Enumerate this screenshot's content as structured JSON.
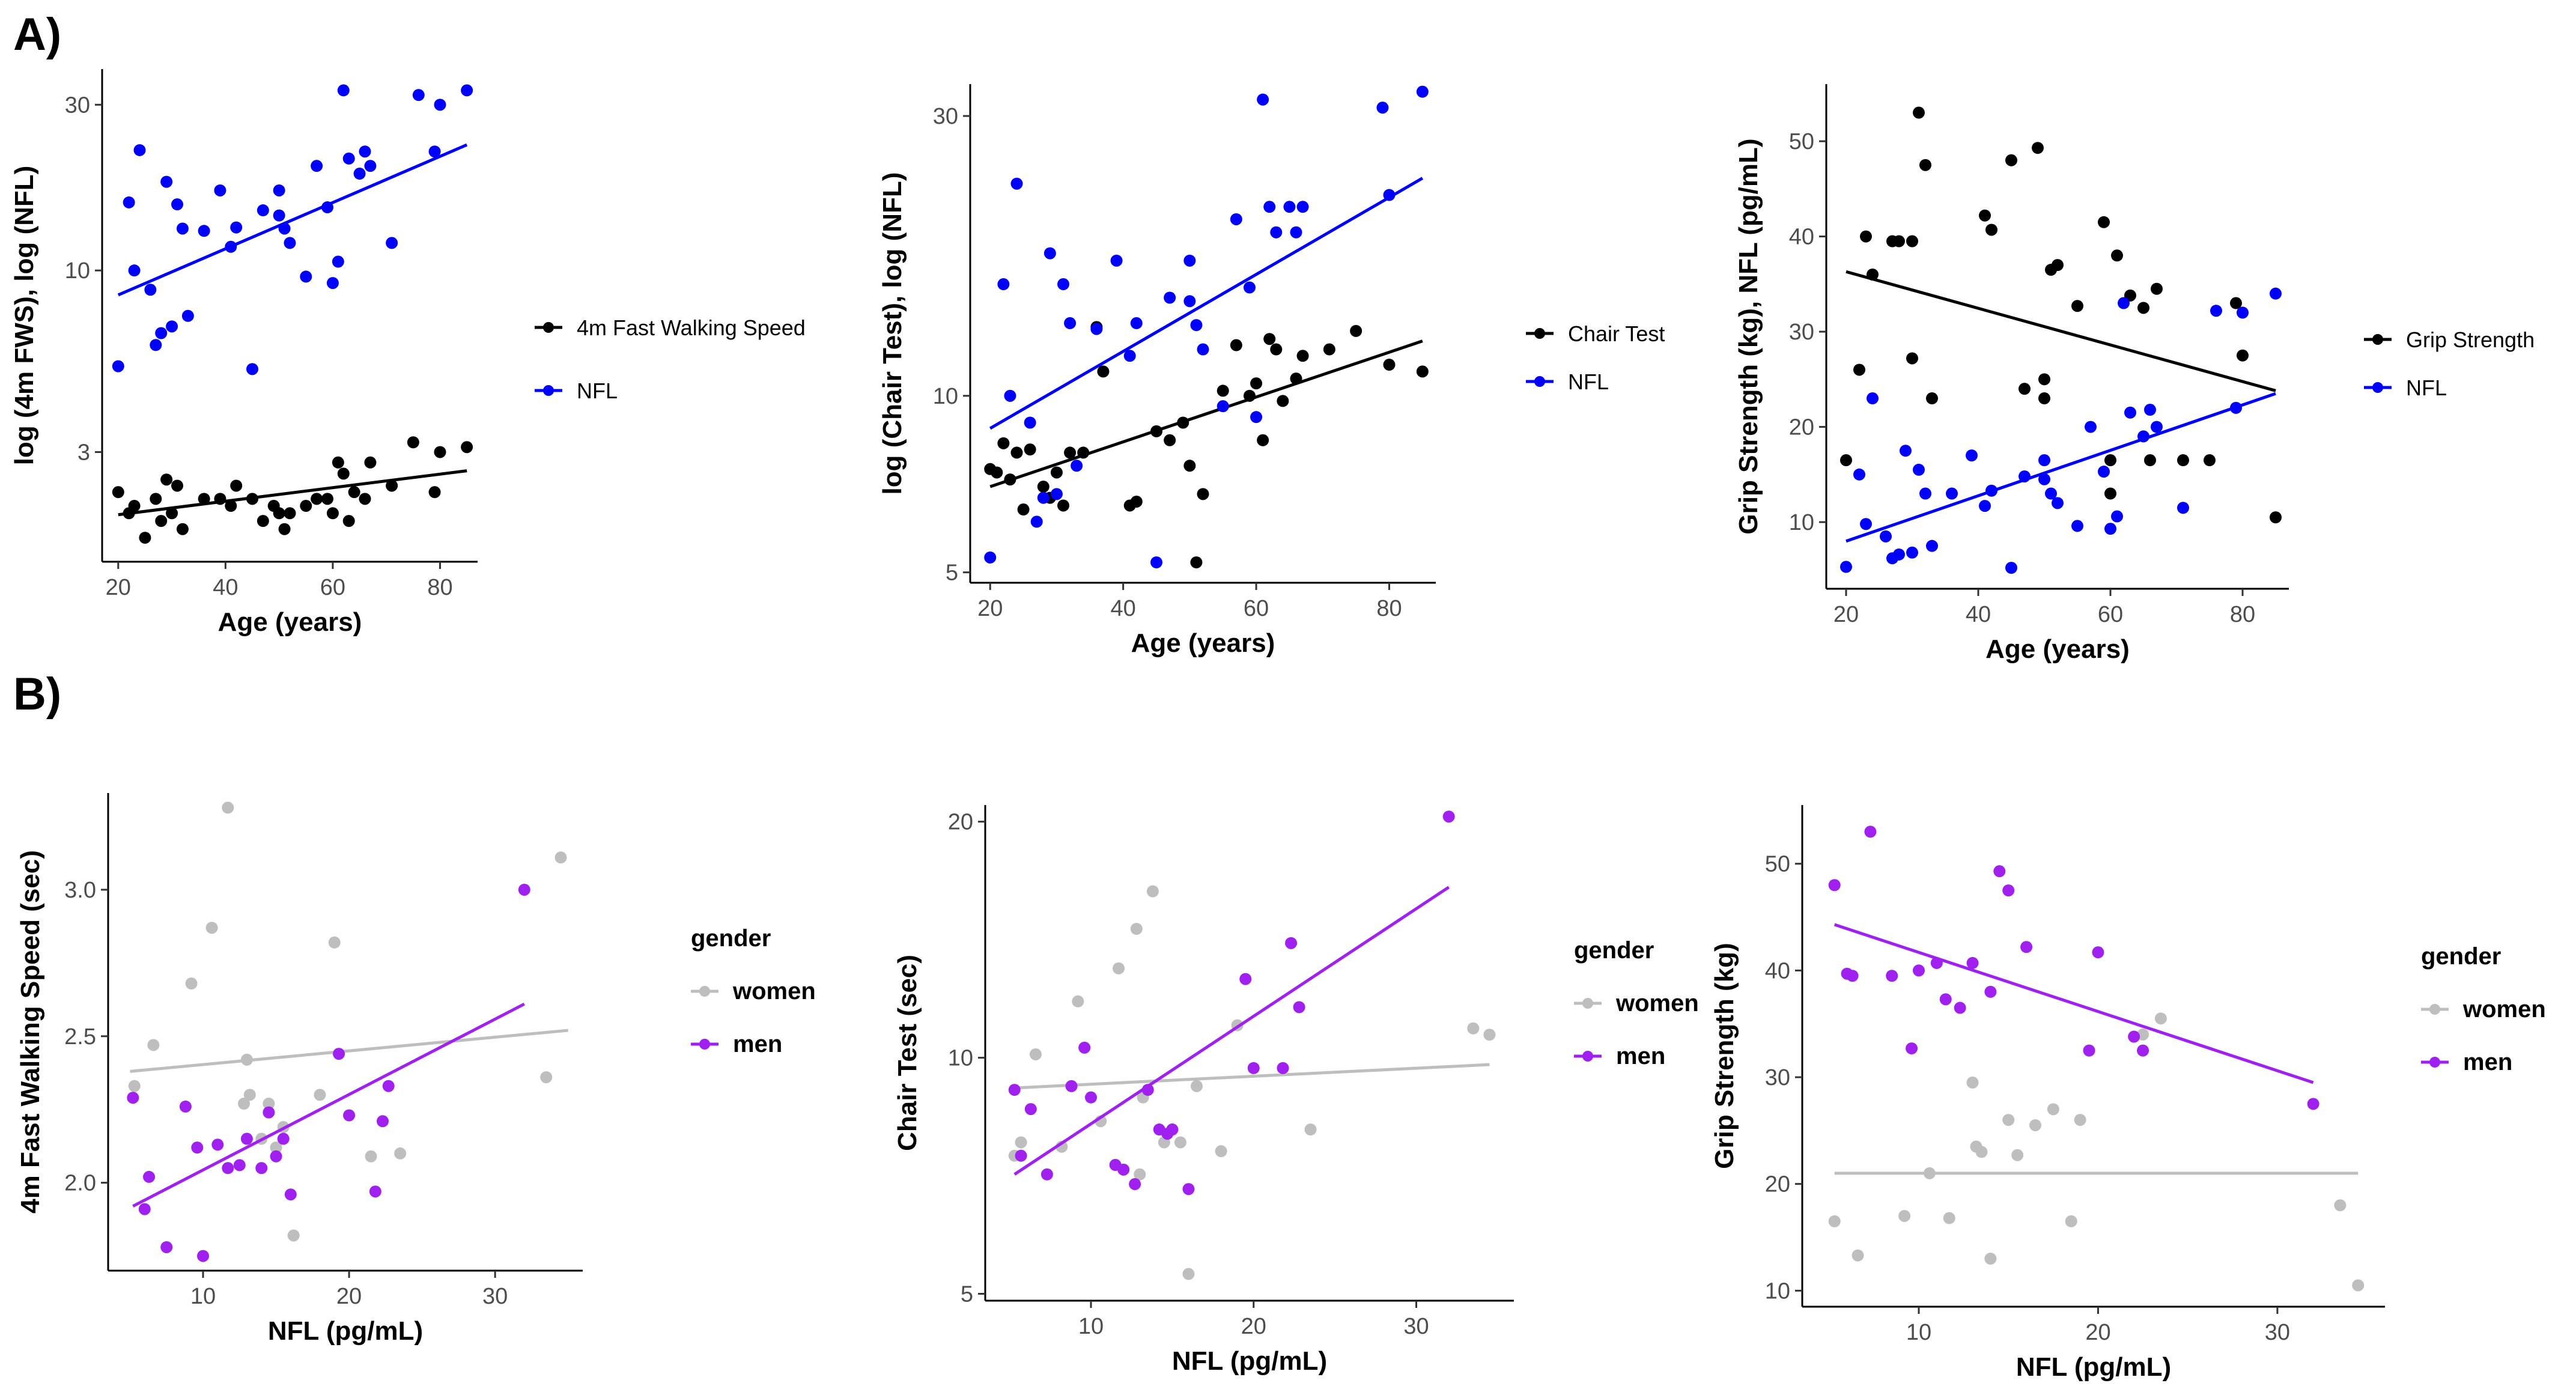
{
  "panels": {
    "a": "A)",
    "b": "B)"
  },
  "chart_data": [
    {
      "id": "a1",
      "type": "scatter",
      "yscale": "log",
      "xlabel": "Age (years)",
      "ylabel": "log (4m FWS), log (NFL)",
      "xlim": [
        17,
        87
      ],
      "ylim": [
        1.45,
        38
      ],
      "xticks": [
        20,
        40,
        60,
        80
      ],
      "yticks": [
        3,
        10,
        30
      ],
      "legend": {
        "position": "right",
        "title": ""
      },
      "series": [
        {
          "name": "4m Fast Walking Speed",
          "color": "#000000",
          "x": [
            20,
            22,
            23,
            25,
            27,
            28,
            29,
            30,
            31,
            32,
            36,
            39,
            41,
            42,
            45,
            47,
            49,
            50,
            51,
            52,
            55,
            57,
            59,
            60,
            61,
            62,
            63,
            64,
            66,
            67,
            71,
            75,
            79,
            80,
            85
          ],
          "y": [
            2.3,
            2.0,
            2.1,
            1.7,
            2.2,
            1.9,
            2.5,
            2.0,
            2.4,
            1.8,
            2.2,
            2.2,
            2.1,
            2.4,
            2.2,
            1.9,
            2.1,
            2.0,
            1.8,
            2.0,
            2.1,
            2.2,
            2.2,
            2.0,
            2.8,
            2.6,
            1.9,
            2.3,
            2.2,
            2.8,
            2.4,
            3.2,
            2.3,
            3.0,
            3.1
          ],
          "fit": [
            [
              20,
              1.98
            ],
            [
              85,
              2.65
            ]
          ]
        },
        {
          "name": "NFL",
          "color": "#0000FF",
          "x": [
            20,
            22,
            23,
            24,
            26,
            27,
            28,
            29,
            30,
            31,
            32,
            33,
            36,
            39,
            41,
            42,
            45,
            47,
            50,
            50,
            51,
            52,
            55,
            57,
            59,
            60,
            61,
            62,
            63,
            65,
            66,
            67,
            71,
            76,
            79,
            80,
            85
          ],
          "y": [
            5.3,
            15.7,
            10.0,
            22.2,
            8.8,
            6.1,
            6.6,
            18.0,
            6.9,
            15.5,
            13.2,
            7.4,
            13.0,
            17.0,
            11.7,
            13.3,
            5.2,
            14.9,
            17.0,
            14.4,
            13.2,
            12.0,
            9.6,
            20.0,
            15.2,
            9.2,
            10.6,
            33.0,
            21.0,
            19.0,
            22.0,
            20.0,
            12.0,
            32.0,
            22.0,
            30.0,
            33.0
          ],
          "fit": [
            [
              20,
              8.5
            ],
            [
              85,
              23.0
            ]
          ]
        }
      ]
    },
    {
      "id": "a2",
      "type": "scatter",
      "yscale": "log",
      "xlabel": "Age (years)",
      "ylabel": "log (Chair Test), log (NFL)",
      "xlim": [
        17,
        87
      ],
      "ylim": [
        4.8,
        34
      ],
      "xticks": [
        20,
        40,
        60,
        80
      ],
      "yticks": [
        5,
        10,
        30
      ],
      "legend": {
        "position": "right",
        "title": ""
      },
      "series": [
        {
          "name": "Chair Test",
          "color": "#000000",
          "x": [
            20,
            21,
            22,
            23,
            24,
            25,
            26,
            28,
            29,
            30,
            31,
            32,
            34,
            36,
            37,
            41,
            42,
            45,
            47,
            49,
            50,
            51,
            52,
            55,
            57,
            59,
            60,
            61,
            62,
            63,
            64,
            66,
            67,
            71,
            75,
            80,
            85
          ],
          "y": [
            7.5,
            7.4,
            8.3,
            7.2,
            8.0,
            6.4,
            8.1,
            7.0,
            6.7,
            7.4,
            6.5,
            8.0,
            8.0,
            13.1,
            11.0,
            6.5,
            6.6,
            8.7,
            8.4,
            9.0,
            7.6,
            5.2,
            6.8,
            10.2,
            12.2,
            10.0,
            10.5,
            8.4,
            12.5,
            12.0,
            9.8,
            10.7,
            11.7,
            12.0,
            12.9,
            11.3,
            11.0
          ],
          "fit": [
            [
              20,
              7.0
            ],
            [
              85,
              12.4
            ]
          ]
        },
        {
          "name": "NFL",
          "color": "#0000FF",
          "x": [
            20,
            22,
            23,
            24,
            26,
            27,
            28,
            29,
            30,
            31,
            32,
            33,
            36,
            39,
            41,
            42,
            45,
            47,
            50,
            50,
            51,
            52,
            55,
            57,
            59,
            60,
            61,
            62,
            63,
            65,
            66,
            67,
            79,
            80,
            85
          ],
          "y": [
            5.3,
            15.5,
            10.0,
            23.0,
            9.0,
            6.1,
            6.7,
            17.5,
            6.8,
            15.5,
            13.3,
            7.6,
            13.0,
            17.0,
            11.7,
            13.3,
            5.2,
            14.7,
            17.0,
            14.5,
            13.2,
            12.0,
            9.6,
            20.0,
            15.3,
            9.2,
            32.0,
            21.0,
            19.0,
            21.0,
            19.0,
            21.0,
            31.0,
            22.0,
            33.0
          ],
          "fit": [
            [
              20,
              8.8
            ],
            [
              85,
              23.5
            ]
          ]
        }
      ]
    },
    {
      "id": "a3",
      "type": "scatter",
      "yscale": "linear",
      "xlabel": "Age (years)",
      "ylabel": "Grip Strength (kg), NFL (pg/mL)",
      "xlim": [
        17,
        87
      ],
      "ylim": [
        3,
        56
      ],
      "xticks": [
        20,
        40,
        60,
        80
      ],
      "yticks": [
        10,
        20,
        30,
        40,
        50
      ],
      "legend": {
        "position": "right",
        "title": ""
      },
      "series": [
        {
          "name": "Grip Strength",
          "color": "#000000",
          "x": [
            20,
            22,
            23,
            24,
            27,
            28,
            30,
            30,
            31,
            32,
            33,
            41,
            42,
            45,
            47,
            49,
            50,
            50,
            51,
            52,
            55,
            59,
            60,
            60,
            61,
            63,
            65,
            66,
            67,
            71,
            75,
            79,
            80,
            85
          ],
          "y": [
            16.5,
            26,
            40,
            36,
            39.5,
            39.5,
            39.5,
            27.2,
            53,
            47.5,
            23,
            42.2,
            40.7,
            48,
            24,
            49.3,
            25,
            23,
            36.5,
            37,
            32.7,
            41.5,
            13,
            16.5,
            38,
            33.8,
            32.5,
            16.5,
            34.5,
            16.5,
            16.5,
            33,
            27.5,
            10.5
          ],
          "fit": [
            [
              20,
              36.3
            ],
            [
              85,
              23.8
            ]
          ]
        },
        {
          "name": "NFL",
          "color": "#0000FF",
          "x": [
            20,
            22,
            23,
            24,
            26,
            27,
            28,
            29,
            30,
            31,
            32,
            33,
            36,
            39,
            41,
            42,
            45,
            47,
            50,
            50,
            51,
            52,
            55,
            57,
            59,
            60,
            61,
            62,
            63,
            65,
            66,
            67,
            71,
            76,
            79,
            80,
            85
          ],
          "y": [
            5.3,
            15,
            9.8,
            23,
            8.5,
            6.2,
            6.6,
            17.5,
            6.8,
            15.5,
            13,
            7.5,
            13,
            17,
            11.7,
            13.3,
            5.2,
            14.8,
            16.5,
            14.5,
            13,
            12,
            9.6,
            20,
            15.3,
            9.3,
            10.6,
            33,
            21.5,
            19,
            21.8,
            20,
            11.5,
            32.2,
            22,
            32,
            34
          ],
          "fit": [
            [
              20,
              8.0
            ],
            [
              85,
              23.5
            ]
          ]
        }
      ]
    },
    {
      "id": "b1",
      "type": "scatter",
      "yscale": "linear",
      "xlabel": "NFL (pg/mL)",
      "ylabel": "4m Fast Walking Speed (sec)",
      "xlim": [
        3.5,
        36
      ],
      "ylim": [
        1.7,
        3.33
      ],
      "xticks": [
        10,
        20,
        30
      ],
      "yticks": [
        "2.0",
        "2.5",
        "3.0"
      ],
      "legend": {
        "position": "right",
        "title": "gender"
      },
      "series": [
        {
          "name": "women",
          "color": "#BEBEBE",
          "x": [
            5.3,
            6.6,
            9.2,
            10.6,
            11.7,
            12.8,
            13.0,
            13.2,
            14.0,
            14.5,
            15.0,
            15.5,
            16.2,
            18.0,
            19.0,
            21.5,
            23.5,
            33.5,
            34.5
          ],
          "y": [
            2.33,
            2.47,
            2.68,
            2.87,
            3.28,
            2.27,
            2.42,
            2.3,
            2.15,
            2.27,
            2.12,
            2.19,
            1.82,
            2.3,
            2.82,
            2.09,
            2.1,
            2.36,
            3.11
          ],
          "fit": [
            [
              5,
              2.38
            ],
            [
              35,
              2.52
            ]
          ]
        },
        {
          "name": "men",
          "color": "#A020F0",
          "x": [
            5.2,
            6.0,
            6.3,
            7.5,
            8.8,
            9.6,
            10.0,
            11.0,
            11.7,
            12.5,
            13.0,
            14.0,
            14.5,
            15.0,
            15.5,
            16.0,
            19.3,
            20.0,
            21.8,
            22.3,
            22.7,
            32.0
          ],
          "y": [
            2.29,
            1.91,
            2.02,
            1.78,
            2.26,
            2.12,
            1.75,
            2.13,
            2.05,
            2.06,
            2.15,
            2.05,
            2.24,
            2.09,
            2.15,
            1.96,
            2.44,
            2.23,
            1.97,
            2.21,
            2.33,
            3.0
          ],
          "fit": [
            [
              5.2,
              1.92
            ],
            [
              32,
              2.61
            ]
          ]
        }
      ]
    },
    {
      "id": "b2",
      "type": "scatter",
      "yscale": "log",
      "xlabel": "NFL (pg/mL)",
      "ylabel": "Chair Test (sec)",
      "xlim": [
        3.5,
        36
      ],
      "ylim": [
        4.9,
        21
      ],
      "xticks": [
        10,
        20,
        30
      ],
      "yticks": [
        5,
        10,
        20
      ],
      "legend": {
        "position": "right",
        "title": "gender"
      },
      "series": [
        {
          "name": "women",
          "color": "#BEBEBE",
          "x": [
            5.3,
            5.7,
            6.6,
            8.2,
            9.2,
            10.6,
            11.7,
            12.8,
            13.0,
            13.2,
            13.8,
            14.5,
            15.0,
            15.5,
            16.0,
            16.5,
            18.0,
            19.0,
            23.5,
            33.5,
            34.5
          ],
          "y": [
            7.5,
            7.8,
            10.1,
            7.7,
            11.8,
            8.3,
            13.0,
            14.6,
            7.1,
            8.9,
            16.3,
            7.8,
            8.1,
            7.8,
            5.3,
            9.2,
            7.6,
            11.0,
            8.1,
            10.9,
            10.7
          ],
          "fit": [
            [
              5.3,
              9.15
            ],
            [
              34.5,
              9.8
            ]
          ]
        },
        {
          "name": "men",
          "color": "#A020F0",
          "x": [
            5.3,
            5.7,
            6.3,
            7.3,
            8.8,
            9.6,
            10.0,
            11.5,
            12.0,
            12.7,
            13.5,
            14.2,
            14.7,
            15.0,
            16.0,
            19.5,
            20.0,
            21.8,
            22.3,
            22.8,
            32.0
          ],
          "y": [
            9.1,
            7.5,
            8.6,
            7.1,
            9.2,
            10.3,
            8.9,
            7.3,
            7.2,
            6.9,
            9.1,
            8.1,
            8.0,
            8.1,
            6.8,
            12.6,
            9.7,
            9.7,
            14.0,
            11.6,
            20.3
          ],
          "fit": [
            [
              5.3,
              7.1
            ],
            [
              32,
              16.5
            ]
          ]
        }
      ]
    },
    {
      "id": "b3",
      "type": "scatter",
      "yscale": "linear",
      "xlabel": "NFL (pg/mL)",
      "ylabel": "Grip Strength (kg)",
      "xlim": [
        3.5,
        36
      ],
      "ylim": [
        8.5,
        55.5
      ],
      "xticks": [
        10,
        20,
        30
      ],
      "yticks": [
        10,
        20,
        30,
        40,
        50
      ],
      "legend": {
        "position": "right",
        "title": "gender"
      },
      "series": [
        {
          "name": "women",
          "color": "#BEBEBE",
          "x": [
            5.3,
            6.6,
            9.2,
            10.6,
            11.7,
            13.0,
            13.2,
            13.5,
            14.0,
            15.0,
            15.5,
            16.5,
            17.5,
            18.5,
            19.0,
            22.5,
            23.5,
            33.5,
            34.5
          ],
          "y": [
            16.5,
            13.3,
            17.0,
            21.0,
            16.8,
            29.5,
            23.5,
            23.0,
            13.0,
            26.0,
            22.7,
            25.5,
            27.0,
            16.5,
            26.0,
            34.0,
            35.5,
            18.0,
            10.5
          ],
          "fit": [
            [
              5.3,
              21.0
            ],
            [
              34.5,
              21.0
            ]
          ]
        },
        {
          "name": "men",
          "color": "#A020F0",
          "x": [
            5.3,
            6.0,
            6.3,
            7.3,
            8.5,
            9.6,
            10.0,
            11.0,
            11.5,
            12.3,
            13.0,
            14.0,
            14.5,
            15.0,
            16.0,
            19.5,
            20.0,
            22.0,
            22.5,
            32.0
          ],
          "y": [
            48.0,
            39.7,
            39.5,
            53.0,
            39.5,
            32.7,
            40.0,
            40.7,
            37.3,
            36.5,
            40.7,
            38.0,
            49.3,
            47.5,
            42.2,
            32.5,
            41.7,
            33.8,
            32.5,
            27.5
          ],
          "fit": [
            [
              5.3,
              44.3
            ],
            [
              32,
              29.5
            ]
          ]
        }
      ]
    }
  ]
}
